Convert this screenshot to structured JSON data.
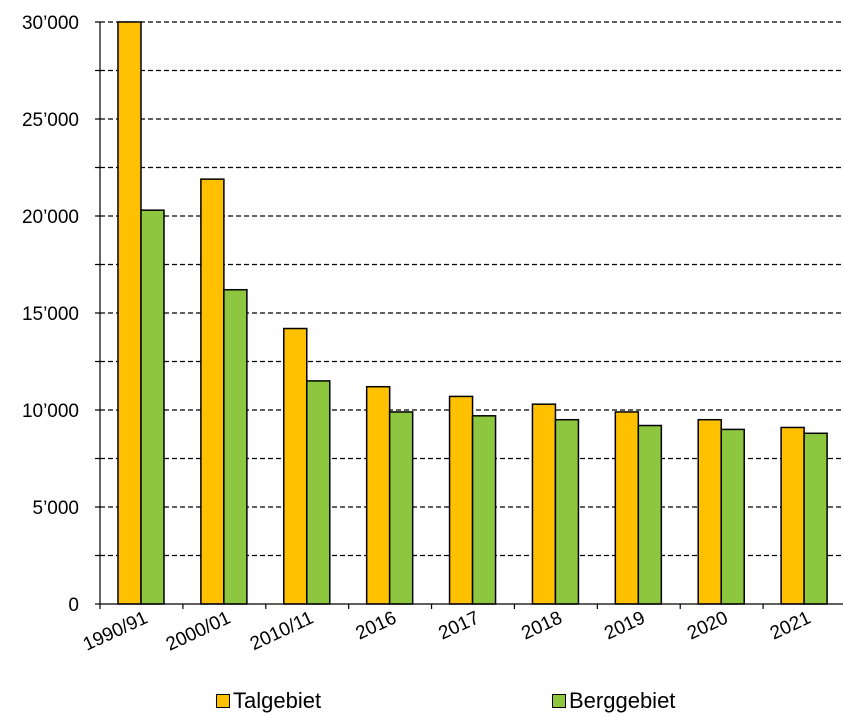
{
  "chart_data": {
    "type": "bar",
    "categories": [
      "1990/91",
      "2000/01",
      "2010/11",
      "2016",
      "2017",
      "2018",
      "2019",
      "2020",
      "2021"
    ],
    "series": [
      {
        "name": "Talgebiet",
        "color": "#FFC000",
        "values": [
          30000,
          21900,
          14200,
          11200,
          10700,
          10300,
          9900,
          9500,
          9100
        ]
      },
      {
        "name": "Berggebiet",
        "color": "#8DC63F",
        "values": [
          20300,
          16200,
          11500,
          9900,
          9700,
          9500,
          9200,
          9000,
          8800
        ]
      }
    ],
    "ylim": [
      0,
      30000
    ],
    "yticks": [
      0,
      5000,
      10000,
      15000,
      20000,
      25000,
      30000
    ],
    "ytick_labels": [
      "0",
      "5’000",
      "10’000",
      "15’000",
      "20’000",
      "25’000",
      "30’000"
    ],
    "grid": "dashed, major and minor horizontal",
    "legend": "bottom",
    "xlabel": "",
    "ylabel": ""
  }
}
